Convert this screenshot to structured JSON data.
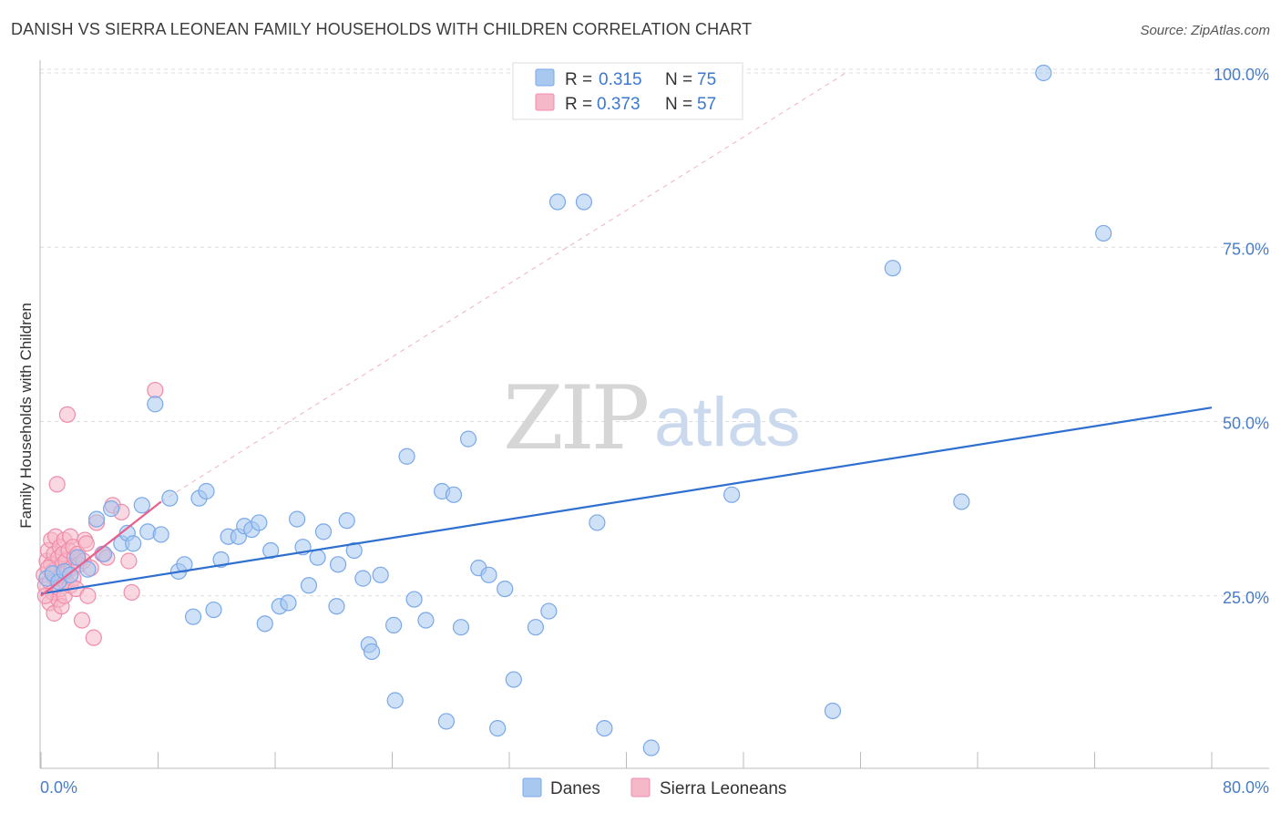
{
  "header": {
    "title": "DANISH VS SIERRA LEONEAN FAMILY HOUSEHOLDS WITH CHILDREN CORRELATION CHART",
    "source": "Source: ZipAtlas.com"
  },
  "watermark": {
    "zip": "ZIP",
    "atlas": "atlas"
  },
  "legend": {
    "rows": [
      {
        "r_label": "R =",
        "r_value": "0.315",
        "n_label": "N =",
        "n_value": "75",
        "color": "#a8c8f0"
      },
      {
        "r_label": "R =",
        "r_value": "0.373",
        "n_label": "N =",
        "n_value": "57",
        "color": "#f5b8c8"
      }
    ]
  },
  "bottom_legend": [
    {
      "label": "Danes",
      "color": "#a8c8f0"
    },
    {
      "label": "Sierra Leoneans",
      "color": "#f5b8c8"
    }
  ],
  "chart_data": {
    "type": "scatter",
    "title": "DANISH VS SIERRA LEONEAN FAMILY HOUSEHOLDS WITH CHILDREN CORRELATION CHART",
    "xlabel": "",
    "ylabel": "Family Households with Children",
    "xlim": [
      0,
      80
    ],
    "ylim": [
      0,
      102
    ],
    "x_tick_labels": [
      "0.0%",
      "80.0%"
    ],
    "y_ticks": [
      25,
      50,
      75,
      100
    ],
    "y_tick_labels": [
      "25.0%",
      "50.0%",
      "75.0%",
      "100.0%"
    ],
    "series": [
      {
        "name": "Danes",
        "color": "#7aa8e8",
        "fill": "#a8c8f0",
        "trend": {
          "x": [
            0,
            80
          ],
          "y": [
            25.3,
            52.0
          ],
          "color": "#2f6fd0"
        },
        "points": [
          [
            0.4,
            27.5
          ],
          [
            0.8,
            28.2
          ],
          [
            1.2,
            27.0
          ],
          [
            1.6,
            28.5
          ],
          [
            2.0,
            28.0
          ],
          [
            2.5,
            30.5
          ],
          [
            3.2,
            28.8
          ],
          [
            3.8,
            36.0
          ],
          [
            4.3,
            31.0
          ],
          [
            4.8,
            37.5
          ],
          [
            5.5,
            32.5
          ],
          [
            5.9,
            34.0
          ],
          [
            6.3,
            32.5
          ],
          [
            6.9,
            38.0
          ],
          [
            7.3,
            34.2
          ],
          [
            7.8,
            52.5
          ],
          [
            8.2,
            33.8
          ],
          [
            8.8,
            39.0
          ],
          [
            9.4,
            28.5
          ],
          [
            9.8,
            29.5
          ],
          [
            10.4,
            22.0
          ],
          [
            10.8,
            39.0
          ],
          [
            11.3,
            40.0
          ],
          [
            11.8,
            23.0
          ],
          [
            12.3,
            30.2
          ],
          [
            12.8,
            33.5
          ],
          [
            13.5,
            33.5
          ],
          [
            13.9,
            35.0
          ],
          [
            14.4,
            34.5
          ],
          [
            14.9,
            35.5
          ],
          [
            15.3,
            21.0
          ],
          [
            15.7,
            31.5
          ],
          [
            16.3,
            23.5
          ],
          [
            16.9,
            24.0
          ],
          [
            17.5,
            36.0
          ],
          [
            17.9,
            32.0
          ],
          [
            18.3,
            26.5
          ],
          [
            18.9,
            30.5
          ],
          [
            19.3,
            34.2
          ],
          [
            20.2,
            23.5
          ],
          [
            20.3,
            29.5
          ],
          [
            20.9,
            35.8
          ],
          [
            21.4,
            31.5
          ],
          [
            22.0,
            27.5
          ],
          [
            22.4,
            18.0
          ],
          [
            22.6,
            17.0
          ],
          [
            23.2,
            28.0
          ],
          [
            24.1,
            20.8
          ],
          [
            24.2,
            10.0
          ],
          [
            25.0,
            45.0
          ],
          [
            25.5,
            24.5
          ],
          [
            26.3,
            21.5
          ],
          [
            27.4,
            40.0
          ],
          [
            27.7,
            7.0
          ],
          [
            28.2,
            39.5
          ],
          [
            28.7,
            20.5
          ],
          [
            29.2,
            47.5
          ],
          [
            29.9,
            29.0
          ],
          [
            30.6,
            28.0
          ],
          [
            31.2,
            6.0
          ],
          [
            31.7,
            26.0
          ],
          [
            32.3,
            13.0
          ],
          [
            33.8,
            20.5
          ],
          [
            34.7,
            22.8
          ],
          [
            35.3,
            81.5
          ],
          [
            37.1,
            81.5
          ],
          [
            38.0,
            35.5
          ],
          [
            38.5,
            6.0
          ],
          [
            41.7,
            3.2
          ],
          [
            47.2,
            39.5
          ],
          [
            54.1,
            8.5
          ],
          [
            58.2,
            72.0
          ],
          [
            62.9,
            38.5
          ],
          [
            68.5,
            100.0
          ],
          [
            72.6,
            77.0
          ]
        ]
      },
      {
        "name": "Sierra Leoneans",
        "color": "#f08cab",
        "fill": "#f5b8c8",
        "trend": {
          "x": [
            0,
            8.2
          ],
          "y": [
            25.0,
            38.5
          ],
          "color": "#e8608c"
        },
        "points": [
          [
            0.2,
            28.0
          ],
          [
            0.3,
            26.5
          ],
          [
            0.4,
            30.0
          ],
          [
            0.5,
            31.5
          ],
          [
            0.6,
            24.0
          ],
          [
            0.6,
            27.0
          ],
          [
            0.7,
            29.5
          ],
          [
            0.7,
            33.0
          ],
          [
            0.8,
            25.5
          ],
          [
            0.8,
            28.5
          ],
          [
            0.9,
            31.0
          ],
          [
            0.9,
            22.5
          ],
          [
            1.0,
            27.5
          ],
          [
            1.0,
            33.5
          ],
          [
            1.1,
            29.0
          ],
          [
            1.1,
            41.0
          ],
          [
            1.2,
            24.5
          ],
          [
            1.2,
            30.5
          ],
          [
            1.3,
            26.0
          ],
          [
            1.3,
            32.0
          ],
          [
            1.4,
            23.5
          ],
          [
            1.4,
            28.0
          ],
          [
            1.5,
            29.5
          ],
          [
            1.5,
            31.0
          ],
          [
            1.6,
            25.0
          ],
          [
            1.6,
            33.0
          ],
          [
            1.7,
            27.0
          ],
          [
            1.7,
            30.0
          ],
          [
            1.8,
            51.0
          ],
          [
            1.8,
            28.5
          ],
          [
            1.9,
            31.5
          ],
          [
            2.0,
            26.5
          ],
          [
            2.0,
            33.5
          ],
          [
            2.1,
            29.0
          ],
          [
            2.2,
            32.0
          ],
          [
            2.2,
            27.5
          ],
          [
            2.3,
            30.5
          ],
          [
            2.4,
            26.0
          ],
          [
            2.5,
            31.0
          ],
          [
            2.6,
            29.5
          ],
          [
            2.8,
            21.5
          ],
          [
            2.9,
            30.0
          ],
          [
            3.0,
            33.0
          ],
          [
            3.1,
            32.5
          ],
          [
            3.2,
            25.0
          ],
          [
            3.4,
            29.0
          ],
          [
            3.6,
            19.0
          ],
          [
            3.8,
            35.5
          ],
          [
            4.2,
            31.0
          ],
          [
            4.5,
            30.5
          ],
          [
            4.9,
            38.0
          ],
          [
            5.5,
            37.0
          ],
          [
            6.0,
            30.0
          ],
          [
            6.2,
            25.5
          ],
          [
            7.8,
            54.5
          ],
          [
            0.3,
            25.0
          ],
          [
            0.5,
            29.0
          ]
        ]
      }
    ]
  }
}
